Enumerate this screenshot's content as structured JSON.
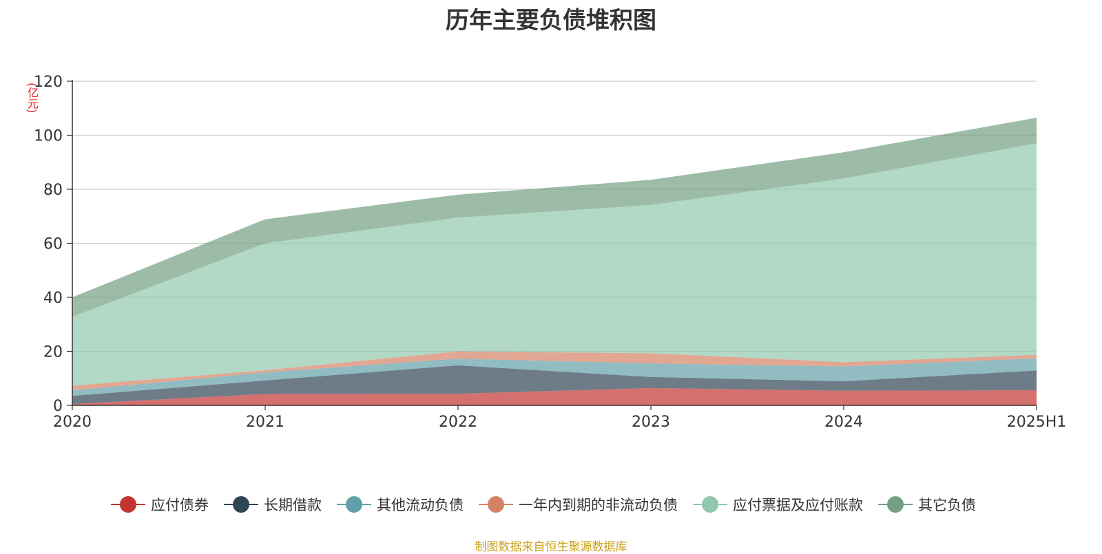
{
  "title": "历年主要负债堆积图",
  "source_note": "制图数据来自恒生聚源数据库",
  "chart_data": {
    "type": "area",
    "stacked": true,
    "title": "历年主要负债堆积图",
    "unit_label": "(亿元)",
    "categories": [
      "2020",
      "2021",
      "2022",
      "2023",
      "2024",
      "2025H1"
    ],
    "ylim": [
      0,
      120
    ],
    "yticks": [
      0,
      20,
      40,
      60,
      80,
      100,
      120
    ],
    "grid": true,
    "legend_position": "bottom",
    "series": [
      {
        "name": "应付债券",
        "color": "#c23531",
        "values": [
          0.5,
          4.2,
          4.3,
          6.4,
          5.4,
          5.6
        ]
      },
      {
        "name": "长期借款",
        "color": "#2f4554",
        "values": [
          3.0,
          5.0,
          10.5,
          4.1,
          3.5,
          7.3
        ]
      },
      {
        "name": "其他流动负债",
        "color": "#61a0a8",
        "values": [
          2.0,
          3.0,
          2.5,
          5.0,
          5.5,
          4.5
        ]
      },
      {
        "name": "一年内到期的非流动负债",
        "color": "#d48265",
        "values": [
          1.8,
          0.8,
          2.7,
          3.8,
          1.6,
          1.3
        ]
      },
      {
        "name": "应付票据及应付账款",
        "color": "#91c7ae",
        "values": [
          25.5,
          47.0,
          49.5,
          54.9,
          68.0,
          78.3
        ]
      },
      {
        "name": "其它负债",
        "color": "#749f83",
        "values": [
          7.2,
          8.9,
          8.5,
          9.3,
          9.7,
          9.5
        ]
      }
    ]
  }
}
